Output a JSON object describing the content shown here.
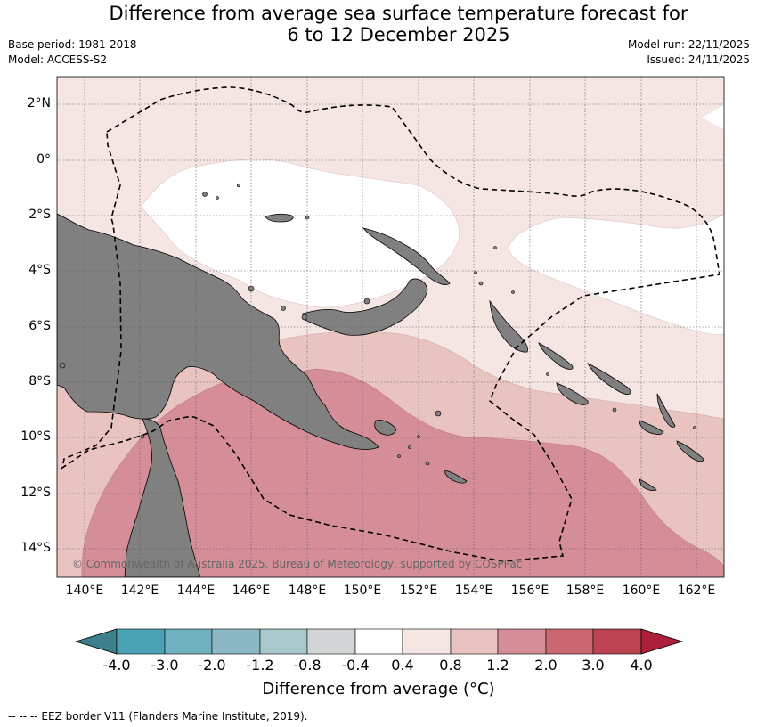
{
  "header": {
    "title_line1": "Difference from average sea surface temperature forecast for",
    "title_line2": "6 to 12 December 2025",
    "base_period": "Base period: 1981-2018",
    "model": "Model: ACCESS-S2",
    "model_run": "Model run: 22/11/2025",
    "issued": "Issued: 24/11/2025"
  },
  "map": {
    "lat_labels": [
      "2°N",
      "0°",
      "2°S",
      "4°S",
      "6°S",
      "8°S",
      "10°S",
      "12°S",
      "14°S"
    ],
    "lon_labels": [
      "140°E",
      "142°E",
      "144°E",
      "146°E",
      "148°E",
      "150°E",
      "152°E",
      "154°E",
      "156°E",
      "158°E",
      "160°E",
      "162°E"
    ],
    "copyright": "© Commonwealth of Australia 2025, Bureau of Meteorology, supported by COSPPac",
    "colors": {
      "land": "#808080",
      "neutral": "#ffffff",
      "band_04_08": "#f5e5e3",
      "band_08_12": "#e8c3c0",
      "band_12_20": "#d58e97",
      "grid": "#555555"
    }
  },
  "colorbar": {
    "title": "Difference from average (°C)",
    "ticks": [
      "-4.0",
      "-3.0",
      "-2.0",
      "-1.2",
      "-0.8",
      "-0.4",
      "0.4",
      "0.8",
      "1.2",
      "2.0",
      "3.0",
      "4.0"
    ],
    "colors": [
      "#3d7f8c",
      "#4aa2b4",
      "#70b1c0",
      "#8cb8c4",
      "#a9c8cc",
      "#d3d6d7",
      "#ffffff",
      "#f5e5e3",
      "#e8c3c0",
      "#d58e97",
      "#cb6771",
      "#bd4352",
      "#ae1f3b"
    ]
  },
  "footnote": "-- -- -- EEZ border V11 (Flanders Marine Institute, 2019)."
}
